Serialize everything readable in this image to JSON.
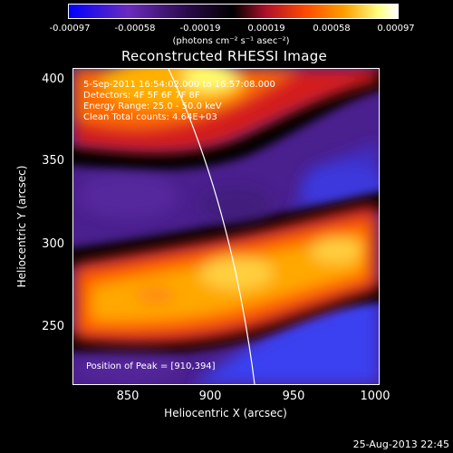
{
  "colorbar": {
    "ticks": [
      "-0.00097",
      "-0.00058",
      "-0.00019",
      "0.00019",
      "0.00058",
      "0.00097"
    ],
    "units": "(photons cm⁻² s⁻¹ asec⁻²)",
    "colors": [
      "#0000ff",
      "#6b2bbd",
      "#2a0a4a",
      "#000000",
      "#b0102a",
      "#ff4a00",
      "#ffa000",
      "#ffff80",
      "#ffffff"
    ]
  },
  "plot": {
    "title": "Reconstructed RHESSI Image",
    "annotations": {
      "time_range": "5-Sep-2011 16:54:02.000 to 16:57:08.000",
      "detectors": "Detectors: 4F 5F 6F 7F 8F",
      "energy_range": "Energy Range: 25.0 - 50.0 keV",
      "clean": "Clean     Total counts: 4.64E+03",
      "peak_position": "Position of Peak = [910,394]"
    },
    "xaxis": {
      "label": "Heliocentric X (arcsec)",
      "ticks": [
        "850",
        "900",
        "950",
        "1000"
      ]
    },
    "yaxis": {
      "label": "Heliocentric Y (arcsec)",
      "ticks": [
        "400",
        "350",
        "300",
        "250"
      ]
    }
  },
  "footer": {
    "date": "25-Aug-2013 22:45"
  }
}
